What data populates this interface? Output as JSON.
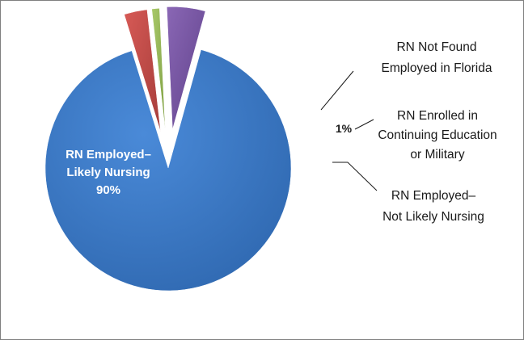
{
  "chart_data": {
    "type": "pie",
    "exploded": true,
    "slices": [
      {
        "name_lines": [
          "RN Employed–",
          "Likely Nursing"
        ],
        "value": 90,
        "label": "90%",
        "color": "#3d7cc9",
        "label_color": "#ffffff"
      },
      {
        "name_lines": [
          "RN Not Found",
          "Employed in Florida"
        ],
        "value": 3,
        "label": "3%",
        "color": "#c0504d",
        "label_color": "#ffffff"
      },
      {
        "name_lines": [
          "RN Enrolled in",
          "Continuing Education",
          "or Military"
        ],
        "value": 1,
        "label": "1%",
        "color": "#9bbb59",
        "label_color": "#000000"
      },
      {
        "name_lines": [
          "RN Employed–",
          "Not Likely Nursing"
        ],
        "value": 5,
        "label": "5%",
        "color": "#7d5ba6",
        "label_color": "#ffffff"
      }
    ]
  }
}
